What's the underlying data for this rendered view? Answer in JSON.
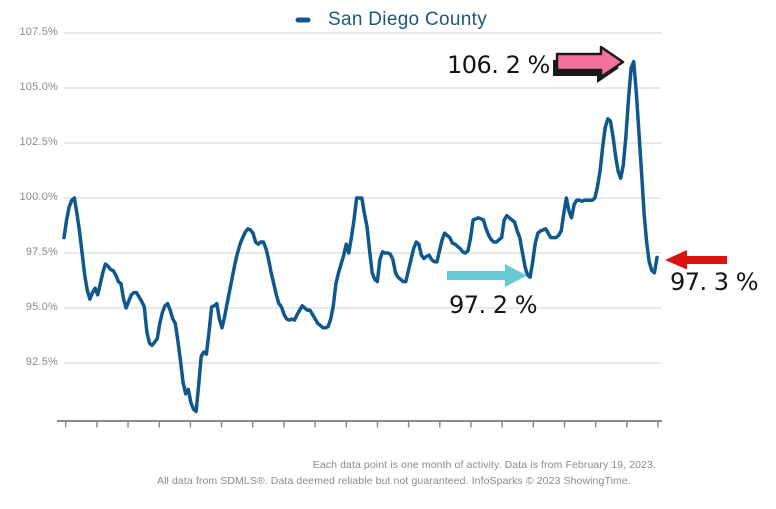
{
  "legend": {
    "label": "San Diego County",
    "marker_color": "#10578c",
    "text_color": "#1e5878"
  },
  "y_axis": {
    "tick_labels": [
      "107.5%",
      "105.0%",
      "102.5%",
      "100.0%",
      "97.5%",
      "95.0%",
      "92.5%"
    ],
    "tick_values": [
      107.5,
      105.0,
      102.5,
      100.0,
      97.5,
      95.0,
      92.5
    ]
  },
  "x_axis": {
    "tick_count": 20,
    "tick_labels_visible": false
  },
  "annotations": {
    "text_color": "#141414",
    "peak": {
      "text": "106. 2 %",
      "value": 106.2,
      "arrow_color": "#f4719e",
      "arrow_outline": "#1a1a1a",
      "arrow_direction": "right"
    },
    "dip": {
      "text": "97. 2 %",
      "value": 97.2,
      "arrow_color": "#69c8d5",
      "arrow_direction": "right"
    },
    "latest": {
      "text": "97. 3 %",
      "value": 97.3,
      "arrow_color": "#dc1410",
      "arrow_direction": "left"
    }
  },
  "footer": {
    "line1": "Each data point is one month of activity. Data is from February 19, 2023.",
    "line2": "All data from SDMLS®. Data deemed reliable but not guaranteed. InfoSparks © 2023 ShowingTime.",
    "text_color": "#8a8a8a"
  },
  "colors": {
    "grid": "#d2d2d2",
    "axis": "#8a8a8a",
    "y_label": "#8a8a8a"
  },
  "chart_data": {
    "type": "line",
    "title": "",
    "xlabel": "",
    "ylabel": "",
    "series_name": "San Diego County",
    "color": "#10578c",
    "x_start": "2004-01",
    "x_end": "2023-02",
    "x_interval": "month",
    "ylim": [
      90,
      107.5
    ],
    "grid": "horizontal-only",
    "legend_position": "top-center",
    "values": [
      98.2,
      99.0,
      99.6,
      99.9,
      100.0,
      99.3,
      98.5,
      97.5,
      96.5,
      95.8,
      95.4,
      95.7,
      95.9,
      95.6,
      96.1,
      96.6,
      97.0,
      96.9,
      96.75,
      96.7,
      96.5,
      96.2,
      96.1,
      95.4,
      95.0,
      95.3,
      95.6,
      95.7,
      95.7,
      95.5,
      95.3,
      95.05,
      93.9,
      93.4,
      93.3,
      93.45,
      93.6,
      94.3,
      94.8,
      95.1,
      95.2,
      94.9,
      94.5,
      94.3,
      93.5,
      92.6,
      91.6,
      91.1,
      91.3,
      90.7,
      90.4,
      90.3,
      91.5,
      92.8,
      93.0,
      92.9,
      93.9,
      95.05,
      95.1,
      95.2,
      94.5,
      94.1,
      94.6,
      95.2,
      95.8,
      96.4,
      97.0,
      97.5,
      97.9,
      98.2,
      98.45,
      98.6,
      98.55,
      98.4,
      98.0,
      97.9,
      98.0,
      98.0,
      97.7,
      97.2,
      96.6,
      96.1,
      95.6,
      95.2,
      95.05,
      94.7,
      94.5,
      94.45,
      94.5,
      94.45,
      94.7,
      94.9,
      95.1,
      95.0,
      94.9,
      94.9,
      94.7,
      94.5,
      94.3,
      94.2,
      94.1,
      94.1,
      94.15,
      94.5,
      95.1,
      96.1,
      96.6,
      97.0,
      97.4,
      97.9,
      97.5,
      98.2,
      99.0,
      100.0,
      100.0,
      100.0,
      99.3,
      98.7,
      97.6,
      96.6,
      96.3,
      96.2,
      97.2,
      97.55,
      97.5,
      97.5,
      97.45,
      97.2,
      96.6,
      96.4,
      96.3,
      96.2,
      96.2,
      96.7,
      97.2,
      97.7,
      98.0,
      97.9,
      97.4,
      97.25,
      97.35,
      97.4,
      97.2,
      97.1,
      97.1,
      97.6,
      98.1,
      98.4,
      98.3,
      98.2,
      97.95,
      97.9,
      97.8,
      97.7,
      97.55,
      97.5,
      97.6,
      98.2,
      99.0,
      99.05,
      99.1,
      99.05,
      99.0,
      98.6,
      98.3,
      98.1,
      98.0,
      98.0,
      98.1,
      98.2,
      99.0,
      99.2,
      99.1,
      99.0,
      98.9,
      98.5,
      98.2,
      97.55,
      96.9,
      96.5,
      96.4,
      97.1,
      97.95,
      98.4,
      98.5,
      98.55,
      98.6,
      98.4,
      98.2,
      98.2,
      98.2,
      98.3,
      98.5,
      99.3,
      100.0,
      99.4,
      99.1,
      99.7,
      99.9,
      99.9,
      99.85,
      99.9,
      99.9,
      99.9,
      99.9,
      100.0,
      100.5,
      101.2,
      102.3,
      103.2,
      103.6,
      103.5,
      102.8,
      101.9,
      101.2,
      100.9,
      101.5,
      102.8,
      104.5,
      105.9,
      106.2,
      104.8,
      103.0,
      101.2,
      99.3,
      98.0,
      97.1,
      96.7,
      96.6,
      97.3
    ]
  }
}
